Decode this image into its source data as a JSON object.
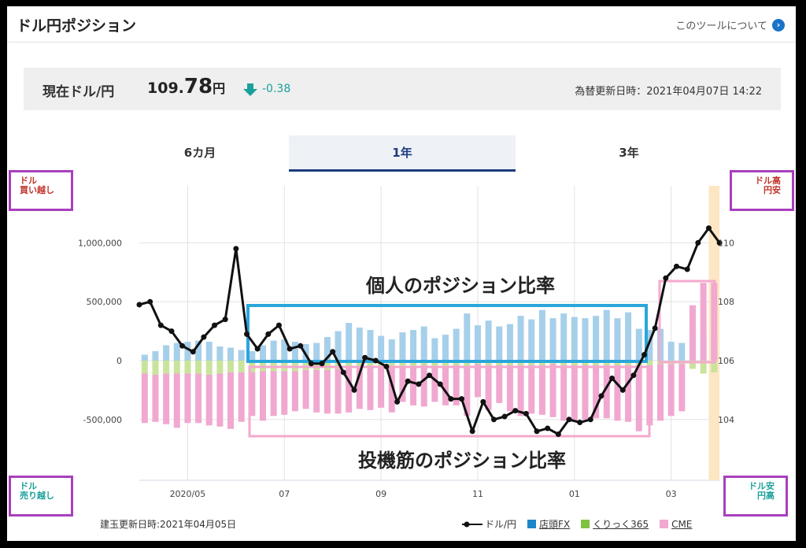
{
  "page": {
    "title": "ドル円ポジション",
    "about_link": "このツールについて"
  },
  "rate": {
    "label": "現在ドル/円",
    "value_int": "109.",
    "value_dec": "78",
    "value_unit": "円",
    "change": "-0.38",
    "direction": "down",
    "updated": "為替更新日時：2021年04月07日 14:22"
  },
  "tabs": [
    {
      "label": "6カ月",
      "active": false
    },
    {
      "label": "1年",
      "active": true
    },
    {
      "label": "3年",
      "active": false
    }
  ],
  "corners": {
    "top_left": [
      "ドル",
      "買い越し"
    ],
    "top_right": [
      "ドル高",
      "円安"
    ],
    "bottom_left": [
      "ドル",
      "売り越し"
    ],
    "bottom_right": [
      "ドル安",
      "円高"
    ]
  },
  "annotations": {
    "individual": "個人のポジション比率",
    "speculators": "投機筋のポジション比率"
  },
  "footer": {
    "positions_updated": "建玉更新日時:2021年04月05日"
  },
  "legend": {
    "line": "ドル/円",
    "tenpo": "店頭FX",
    "kurikku": "くりっく365",
    "cme": "CME"
  },
  "colors": {
    "line": "#111111",
    "tenpo": "#a6cfea",
    "kurikku": "#c9e49a",
    "cme": "#f0a8d0",
    "annot_blue": "#2aa6dc",
    "annot_pink": "#f4a9cd",
    "current_band": "#fde6c4",
    "down_arrow": "#1aa09a"
  },
  "chart_data": {
    "type": "bar+line",
    "x_ticks": [
      "2020/05",
      "07",
      "09",
      "11",
      "01",
      "03"
    ],
    "x_tick_positions": [
      4.5,
      13.5,
      22.5,
      31.5,
      40.5,
      49.5
    ],
    "y_left": {
      "ticks": [
        1000000,
        500000,
        0,
        -500000
      ],
      "tick_labels": [
        "1,000,000",
        "500,000",
        "0",
        "-500,000"
      ],
      "range": [
        -1000000,
        1500000
      ]
    },
    "y_right": {
      "ticks": [
        110,
        108,
        106,
        104
      ],
      "tick_labels": [
        "110",
        "108",
        "106",
        "104"
      ],
      "range": [
        102,
        112
      ]
    },
    "bar_count": 54,
    "series": [
      {
        "name": "店頭FX",
        "axis": "left",
        "values": [
          50000,
          80000,
          130000,
          150000,
          160000,
          170000,
          160000,
          120000,
          110000,
          90000,
          80000,
          130000,
          170000,
          180000,
          160000,
          140000,
          150000,
          200000,
          250000,
          320000,
          280000,
          260000,
          210000,
          180000,
          240000,
          260000,
          290000,
          190000,
          220000,
          270000,
          400000,
          300000,
          340000,
          290000,
          310000,
          380000,
          350000,
          430000,
          360000,
          400000,
          370000,
          360000,
          380000,
          430000,
          360000,
          410000,
          270000,
          260000,
          270000,
          160000,
          150000,
          230000,
          220000,
          180000
        ]
      },
      {
        "name": "くりっく365",
        "axis": "left",
        "values": [
          -110000,
          -120000,
          -110000,
          -110000,
          -110000,
          -110000,
          -120000,
          -110000,
          -100000,
          -100000,
          -100000,
          -90000,
          -90000,
          -90000,
          -90000,
          -80000,
          -80000,
          -80000,
          -70000,
          -60000,
          -60000,
          -60000,
          -50000,
          -60000,
          -50000,
          -50000,
          -40000,
          -50000,
          -50000,
          -40000,
          -50000,
          -30000,
          -40000,
          -40000,
          -40000,
          -40000,
          -40000,
          -40000,
          -30000,
          -40000,
          -40000,
          -40000,
          -40000,
          -40000,
          -40000,
          -40000,
          -40000,
          -40000,
          -30000,
          -30000,
          -30000,
          -70000,
          -110000,
          -100000
        ]
      },
      {
        "name": "CME",
        "axis": "left",
        "values": [
          -420000,
          -400000,
          -430000,
          -460000,
          -420000,
          -420000,
          -430000,
          -450000,
          -480000,
          -420000,
          -370000,
          -420000,
          -380000,
          -370000,
          -340000,
          -330000,
          -360000,
          -370000,
          -380000,
          -380000,
          -350000,
          -360000,
          -350000,
          -380000,
          -300000,
          -330000,
          -350000,
          -300000,
          -330000,
          -340000,
          -420000,
          -280000,
          -380000,
          -320000,
          -390000,
          -430000,
          -410000,
          -420000,
          -450000,
          -470000,
          -480000,
          -460000,
          -450000,
          -450000,
          -470000,
          -480000,
          -560000,
          -510000,
          -480000,
          -440000,
          -400000,
          470000,
          660000,
          660000
        ]
      },
      {
        "name": "ドル/円",
        "axis": "right",
        "type": "line",
        "values": [
          107.9,
          108.0,
          107.2,
          107.0,
          106.5,
          106.3,
          106.8,
          107.2,
          107.4,
          109.8,
          106.9,
          106.4,
          106.9,
          107.2,
          106.4,
          106.5,
          105.9,
          105.9,
          106.3,
          105.6,
          105.0,
          106.1,
          106.0,
          105.8,
          104.6,
          105.3,
          105.2,
          105.5,
          105.2,
          104.7,
          104.7,
          103.6,
          104.6,
          104.0,
          104.1,
          104.3,
          104.2,
          103.6,
          103.7,
          103.5,
          104.0,
          103.9,
          104.0,
          104.8,
          105.4,
          105.0,
          105.5,
          106.2,
          107.1,
          108.8,
          109.2,
          109.1,
          110.0,
          110.5,
          110.0
        ]
      }
    ]
  }
}
